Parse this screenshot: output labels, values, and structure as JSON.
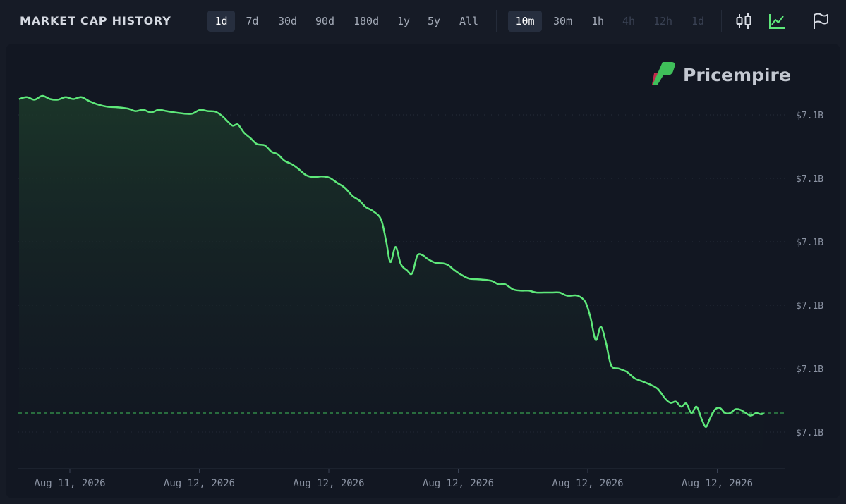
{
  "header": {
    "title": "MARKET CAP HISTORY",
    "ranges": [
      {
        "label": "1d",
        "active": true
      },
      {
        "label": "7d",
        "active": false
      },
      {
        "label": "30d",
        "active": false
      },
      {
        "label": "90d",
        "active": false
      },
      {
        "label": "180d",
        "active": false
      },
      {
        "label": "1y",
        "active": false
      },
      {
        "label": "5y",
        "active": false
      },
      {
        "label": "All",
        "active": false
      }
    ],
    "intervals": [
      {
        "label": "10m",
        "active": true,
        "disabled": false
      },
      {
        "label": "30m",
        "active": false,
        "disabled": false
      },
      {
        "label": "1h",
        "active": false,
        "disabled": false
      },
      {
        "label": "4h",
        "active": false,
        "disabled": true
      },
      {
        "label": "12h",
        "active": false,
        "disabled": true
      },
      {
        "label": "1d",
        "active": false,
        "disabled": true
      }
    ],
    "icons": [
      "candlestick-icon",
      "line-chart-icon",
      "flag-icon"
    ]
  },
  "watermark": {
    "text": "Pricempire"
  },
  "colors": {
    "background": "#161b26",
    "panel": "#121722",
    "line": "#5ee87a",
    "area_top": "#1c3a2a",
    "baseline": "#3fbf5a",
    "axis_text": "#8b93a3",
    "logo_green": "#3fbf5a",
    "logo_red": "#c2294b"
  },
  "chart_data": {
    "type": "area",
    "title": "MARKET CAP HISTORY",
    "y_tick_labels": [
      "$7.1B",
      "$7.1B",
      "$7.1B",
      "$7.1B",
      "$7.1B",
      "$7.1B"
    ],
    "x_tick_labels": [
      "Aug 11, 2026",
      "Aug 12, 2026",
      "Aug 12, 2026",
      "Aug 12, 2026",
      "Aug 12, 2026",
      "Aug 12, 2026"
    ],
    "y_unit": "relative (ticks 0-5, bottom tick = 0)",
    "ylim": [
      -0.6,
      5.2
    ],
    "baseline_value": 0.3,
    "x_range": [
      0,
      144
    ],
    "series": [
      {
        "values": [
          [
            0,
            5.25
          ],
          [
            1.5,
            5.28
          ],
          [
            3,
            5.24
          ],
          [
            4.5,
            5.3
          ],
          [
            6,
            5.25
          ],
          [
            7.5,
            5.24
          ],
          [
            9,
            5.28
          ],
          [
            10.5,
            5.25
          ],
          [
            12,
            5.28
          ],
          [
            13.5,
            5.22
          ],
          [
            15,
            5.17
          ],
          [
            17,
            5.13
          ],
          [
            19,
            5.12
          ],
          [
            21,
            5.1
          ],
          [
            22.5,
            5.06
          ],
          [
            24,
            5.08
          ],
          [
            25.5,
            5.04
          ],
          [
            27,
            5.08
          ],
          [
            28.5,
            5.06
          ],
          [
            30,
            5.04
          ],
          [
            32,
            5.02
          ],
          [
            33.5,
            5.02
          ],
          [
            35,
            5.08
          ],
          [
            36.5,
            5.06
          ],
          [
            38,
            5.05
          ],
          [
            39.3,
            4.98
          ],
          [
            40.3,
            4.9
          ],
          [
            41.3,
            4.83
          ],
          [
            42.3,
            4.85
          ],
          [
            43.5,
            4.72
          ],
          [
            44.8,
            4.63
          ],
          [
            46,
            4.54
          ],
          [
            47.5,
            4.52
          ],
          [
            48.8,
            4.42
          ],
          [
            50,
            4.38
          ],
          [
            51.3,
            4.28
          ],
          [
            52.8,
            4.22
          ],
          [
            54,
            4.15
          ],
          [
            55.5,
            4.05
          ],
          [
            57,
            4.02
          ],
          [
            58.5,
            4.03
          ],
          [
            60,
            4.01
          ],
          [
            61.5,
            3.93
          ],
          [
            63,
            3.85
          ],
          [
            64.5,
            3.72
          ],
          [
            65.8,
            3.65
          ],
          [
            67,
            3.55
          ],
          [
            68.5,
            3.48
          ],
          [
            70,
            3.35
          ],
          [
            71,
            3.0
          ],
          [
            71.8,
            2.68
          ],
          [
            72.8,
            2.92
          ],
          [
            73.8,
            2.65
          ],
          [
            75,
            2.55
          ],
          [
            76,
            2.5
          ],
          [
            77,
            2.78
          ],
          [
            78,
            2.79
          ],
          [
            79,
            2.73
          ],
          [
            80.5,
            2.67
          ],
          [
            82,
            2.66
          ],
          [
            83,
            2.63
          ],
          [
            84.2,
            2.55
          ],
          [
            85.5,
            2.48
          ],
          [
            87,
            2.42
          ],
          [
            88.5,
            2.41
          ],
          [
            90,
            2.4
          ],
          [
            91.5,
            2.38
          ],
          [
            92.7,
            2.33
          ],
          [
            94,
            2.33
          ],
          [
            95.5,
            2.25
          ],
          [
            97,
            2.23
          ],
          [
            98.5,
            2.23
          ],
          [
            100,
            2.2
          ],
          [
            101.5,
            2.2
          ],
          [
            103,
            2.2
          ],
          [
            104.5,
            2.2
          ],
          [
            106,
            2.15
          ],
          [
            108,
            2.15
          ],
          [
            109.5,
            2.05
          ],
          [
            110.5,
            1.8
          ],
          [
            111.5,
            1.45
          ],
          [
            112.5,
            1.66
          ],
          [
            113.5,
            1.4
          ],
          [
            114.5,
            1.05
          ],
          [
            116,
            1.0
          ],
          [
            117.5,
            0.95
          ],
          [
            119,
            0.85
          ],
          [
            120.5,
            0.8
          ],
          [
            122,
            0.75
          ],
          [
            123.5,
            0.68
          ],
          [
            125,
            0.52
          ],
          [
            126,
            0.46
          ],
          [
            127,
            0.48
          ],
          [
            128,
            0.4
          ],
          [
            129,
            0.45
          ],
          [
            130,
            0.3
          ],
          [
            131,
            0.4
          ],
          [
            132,
            0.2
          ],
          [
            132.8,
            0.08
          ],
          [
            133.5,
            0.2
          ],
          [
            134.5,
            0.35
          ],
          [
            135.5,
            0.38
          ],
          [
            136.5,
            0.3
          ],
          [
            137.5,
            0.3
          ],
          [
            138.5,
            0.36
          ],
          [
            139.5,
            0.35
          ],
          [
            140.5,
            0.3
          ],
          [
            141.5,
            0.26
          ],
          [
            142.5,
            0.3
          ],
          [
            143.5,
            0.28
          ],
          [
            144,
            0.3
          ]
        ]
      }
    ]
  }
}
